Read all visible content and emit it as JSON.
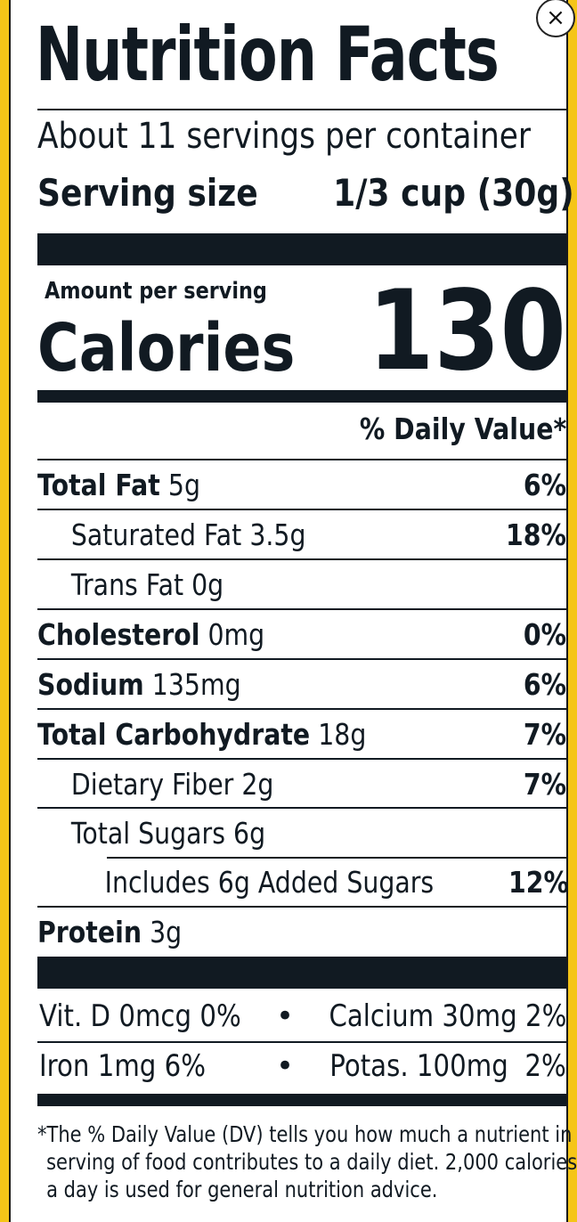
{
  "title": "Nutrition Facts",
  "servings_per_container": "About 11 servings per container",
  "serving_size_label": "Serving size",
  "serving_size_value": "1/3 cup (30g)",
  "amount_per_serving": "Amount per serving",
  "calories_label": "Calories",
  "calories_value": "130",
  "daily_value_header": "% Daily Value*",
  "nutrients": [
    {
      "name": "Total Fat",
      "amount": "5g",
      "dv": "6%"
    },
    {
      "name": "Saturated Fat",
      "amount": "3.5g",
      "dv": "18%"
    },
    {
      "name": "Trans Fat",
      "amount": "0g",
      "dv": ""
    },
    {
      "name": "Cholesterol",
      "amount": "0mg",
      "dv": "0%"
    },
    {
      "name": "Sodium",
      "amount": "135mg",
      "dv": "6%"
    },
    {
      "name": "Total Carbohydrate",
      "amount": "18g",
      "dv": "7%"
    },
    {
      "name": "Dietary Fiber",
      "amount": "2g",
      "dv": "7%"
    },
    {
      "name": "Total Sugars",
      "amount": "6g",
      "dv": ""
    },
    {
      "name": "Includes 6g Added Sugars",
      "amount": "",
      "dv": "12%"
    },
    {
      "name": "Protein",
      "amount": "3g",
      "dv": ""
    }
  ],
  "vitamins": [
    {
      "left": "Vit. D 0mcg 0%",
      "sep": "•",
      "right": "Calcium 30mg 2%"
    },
    {
      "left": "Iron 1mg 6%",
      "sep": "•",
      "right": "Potas. 100mg  2%"
    }
  ],
  "footnote": [
    "*The % Daily Value (DV) tells you how much a nutrient in a",
    "serving of food contributes to a daily diet. 2,000 calories",
    "a day is used for general nutrition advice."
  ],
  "close_icon": "×",
  "colors": {
    "background": "#f5c518",
    "ink": "#111a22",
    "panel": "#ffffff"
  }
}
